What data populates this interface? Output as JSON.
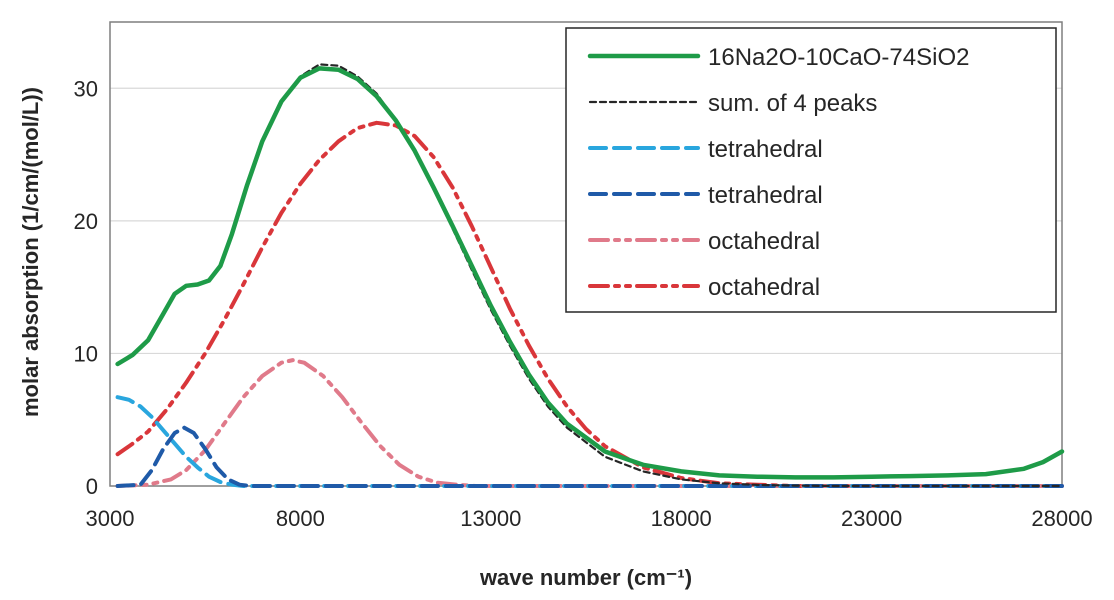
{
  "chart_data": {
    "type": "line",
    "xlabel": "wave number (cm⁻¹)",
    "ylabel": "molar absorption (1/cm/(mol/L))",
    "xlim": [
      3000,
      28000
    ],
    "ylim": [
      0,
      35
    ],
    "xticks": [
      "3000",
      "8000",
      "13000",
      "18000",
      "23000",
      "28000"
    ],
    "yticks": [
      "0",
      "10",
      "20",
      "30"
    ],
    "xtick_values": [
      3000,
      8000,
      13000,
      18000,
      23000,
      28000
    ],
    "ytick_values": [
      0,
      10,
      20,
      30
    ],
    "grid": "horizontal",
    "legend_position": "top-right",
    "series": [
      {
        "name": "16Na2O-10CaO-74SiO2",
        "color": "#1e9b48",
        "style": "solid",
        "points": [
          [
            3200,
            9.2
          ],
          [
            3600,
            9.9
          ],
          [
            4000,
            11.0
          ],
          [
            4400,
            13.0
          ],
          [
            4700,
            14.5
          ],
          [
            5000,
            15.1
          ],
          [
            5300,
            15.2
          ],
          [
            5600,
            15.5
          ],
          [
            5900,
            16.6
          ],
          [
            6200,
            19.0
          ],
          [
            6600,
            22.7
          ],
          [
            7000,
            26.0
          ],
          [
            7500,
            29.0
          ],
          [
            8000,
            30.8
          ],
          [
            8500,
            31.5
          ],
          [
            9000,
            31.4
          ],
          [
            9500,
            30.7
          ],
          [
            10000,
            29.4
          ],
          [
            10500,
            27.6
          ],
          [
            11000,
            25.3
          ],
          [
            11500,
            22.5
          ],
          [
            12000,
            19.6
          ],
          [
            12500,
            16.6
          ],
          [
            13000,
            13.6
          ],
          [
            13500,
            10.9
          ],
          [
            14000,
            8.4
          ],
          [
            14500,
            6.3
          ],
          [
            15000,
            4.7
          ],
          [
            16000,
            2.6
          ],
          [
            17000,
            1.6
          ],
          [
            18000,
            1.1
          ],
          [
            19000,
            0.8
          ],
          [
            20000,
            0.7
          ],
          [
            21000,
            0.65
          ],
          [
            22000,
            0.65
          ],
          [
            23000,
            0.7
          ],
          [
            24000,
            0.75
          ],
          [
            25000,
            0.8
          ],
          [
            26000,
            0.9
          ],
          [
            27000,
            1.3
          ],
          [
            27500,
            1.8
          ],
          [
            28000,
            2.6
          ]
        ]
      },
      {
        "name": "sum. of 4 peaks",
        "color": "#262626",
        "style": "dotted",
        "points": [
          [
            3200,
            9.2
          ],
          [
            3600,
            9.9
          ],
          [
            4000,
            11.0
          ],
          [
            4400,
            13.0
          ],
          [
            4700,
            14.5
          ],
          [
            5000,
            15.1
          ],
          [
            5300,
            15.2
          ],
          [
            5600,
            15.5
          ],
          [
            5900,
            16.6
          ],
          [
            6200,
            19.0
          ],
          [
            6600,
            22.7
          ],
          [
            7000,
            26.0
          ],
          [
            7500,
            29.0
          ],
          [
            8000,
            30.9
          ],
          [
            8500,
            31.8
          ],
          [
            9000,
            31.7
          ],
          [
            9500,
            30.9
          ],
          [
            10000,
            29.6
          ],
          [
            10500,
            27.6
          ],
          [
            11000,
            25.3
          ],
          [
            11500,
            22.4
          ],
          [
            12000,
            19.4
          ],
          [
            12500,
            16.3
          ],
          [
            13000,
            13.3
          ],
          [
            13500,
            10.6
          ],
          [
            14000,
            8.1
          ],
          [
            14500,
            6.0
          ],
          [
            15000,
            4.4
          ],
          [
            16000,
            2.2
          ],
          [
            17000,
            1.1
          ],
          [
            18000,
            0.5
          ],
          [
            19000,
            0.2
          ],
          [
            20000,
            0.08
          ],
          [
            21000,
            0.03
          ],
          [
            22000,
            0.0
          ],
          [
            25000,
            0.0
          ],
          [
            28000,
            0.0
          ]
        ]
      },
      {
        "name": "tetrahedral",
        "color": "#29a6de",
        "style": "dashed",
        "points": [
          [
            3200,
            6.7
          ],
          [
            3500,
            6.5
          ],
          [
            3800,
            6.0
          ],
          [
            4100,
            5.2
          ],
          [
            4400,
            4.2
          ],
          [
            4700,
            3.2
          ],
          [
            5000,
            2.2
          ],
          [
            5300,
            1.4
          ],
          [
            5600,
            0.7
          ],
          [
            5900,
            0.3
          ],
          [
            6200,
            0.1
          ],
          [
            6500,
            0.0
          ],
          [
            28000,
            0.0
          ]
        ]
      },
      {
        "name": "tetrahedral",
        "color": "#1f5aa8",
        "style": "dashed",
        "points": [
          [
            3200,
            0.0
          ],
          [
            3800,
            0.1
          ],
          [
            4100,
            1.2
          ],
          [
            4400,
            2.8
          ],
          [
            4700,
            4.0
          ],
          [
            4950,
            4.4
          ],
          [
            5200,
            4.0
          ],
          [
            5500,
            2.8
          ],
          [
            5800,
            1.4
          ],
          [
            6100,
            0.5
          ],
          [
            6400,
            0.1
          ],
          [
            6700,
            0.0
          ],
          [
            28000,
            0.0
          ]
        ]
      },
      {
        "name": "octahedral",
        "color": "#e07a8a",
        "style": "dashdotdot",
        "points": [
          [
            3200,
            0.0
          ],
          [
            4000,
            0.1
          ],
          [
            4600,
            0.5
          ],
          [
            5000,
            1.2
          ],
          [
            5500,
            2.7
          ],
          [
            6000,
            4.7
          ],
          [
            6500,
            6.7
          ],
          [
            7000,
            8.3
          ],
          [
            7500,
            9.3
          ],
          [
            7800,
            9.5
          ],
          [
            8100,
            9.3
          ],
          [
            8600,
            8.3
          ],
          [
            9100,
            6.7
          ],
          [
            9600,
            4.8
          ],
          [
            10100,
            3.0
          ],
          [
            10600,
            1.6
          ],
          [
            11100,
            0.7
          ],
          [
            11600,
            0.25
          ],
          [
            12100,
            0.1
          ],
          [
            12600,
            0.0
          ],
          [
            28000,
            0.0
          ]
        ]
      },
      {
        "name": "octahedral",
        "color": "#d9363a",
        "style": "dashdotdot",
        "points": [
          [
            3200,
            2.4
          ],
          [
            3600,
            3.2
          ],
          [
            4000,
            4.1
          ],
          [
            4500,
            5.8
          ],
          [
            5000,
            7.8
          ],
          [
            5500,
            10.0
          ],
          [
            6000,
            12.5
          ],
          [
            6500,
            15.2
          ],
          [
            7000,
            18.0
          ],
          [
            7500,
            20.6
          ],
          [
            8000,
            22.8
          ],
          [
            8500,
            24.6
          ],
          [
            9000,
            26.0
          ],
          [
            9500,
            27.0
          ],
          [
            10000,
            27.4
          ],
          [
            10500,
            27.2
          ],
          [
            11000,
            26.4
          ],
          [
            11500,
            24.8
          ],
          [
            12000,
            22.5
          ],
          [
            12500,
            19.6
          ],
          [
            13000,
            16.5
          ],
          [
            13500,
            13.4
          ],
          [
            14000,
            10.6
          ],
          [
            14500,
            8.1
          ],
          [
            15000,
            6.0
          ],
          [
            15500,
            4.3
          ],
          [
            16000,
            3.0
          ],
          [
            17000,
            1.4
          ],
          [
            18000,
            0.6
          ],
          [
            19000,
            0.2
          ],
          [
            20000,
            0.1
          ],
          [
            21000,
            0.0
          ],
          [
            28000,
            0.0
          ]
        ]
      }
    ]
  }
}
